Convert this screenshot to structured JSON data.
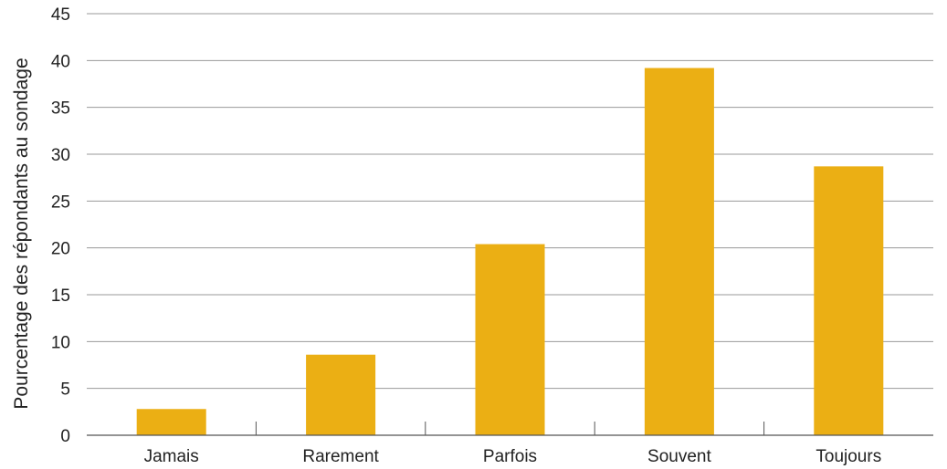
{
  "chart_data": {
    "type": "bar",
    "categories": [
      "Jamais",
      "Rarement",
      "Parfois",
      "Souvent",
      "Toujours"
    ],
    "values": [
      2.8,
      8.6,
      20.4,
      39.2,
      28.7
    ],
    "xlabel": "",
    "ylabel": "Pourcentage des répondants au sondage",
    "ylim": [
      0,
      45
    ],
    "yticks": [
      0,
      5,
      10,
      15,
      20,
      25,
      30,
      35,
      40,
      45
    ],
    "grid": true,
    "legend": "none",
    "colors": {
      "bar": "#EBAF14",
      "grid": "#9A9A9A",
      "text": "#222222"
    }
  }
}
